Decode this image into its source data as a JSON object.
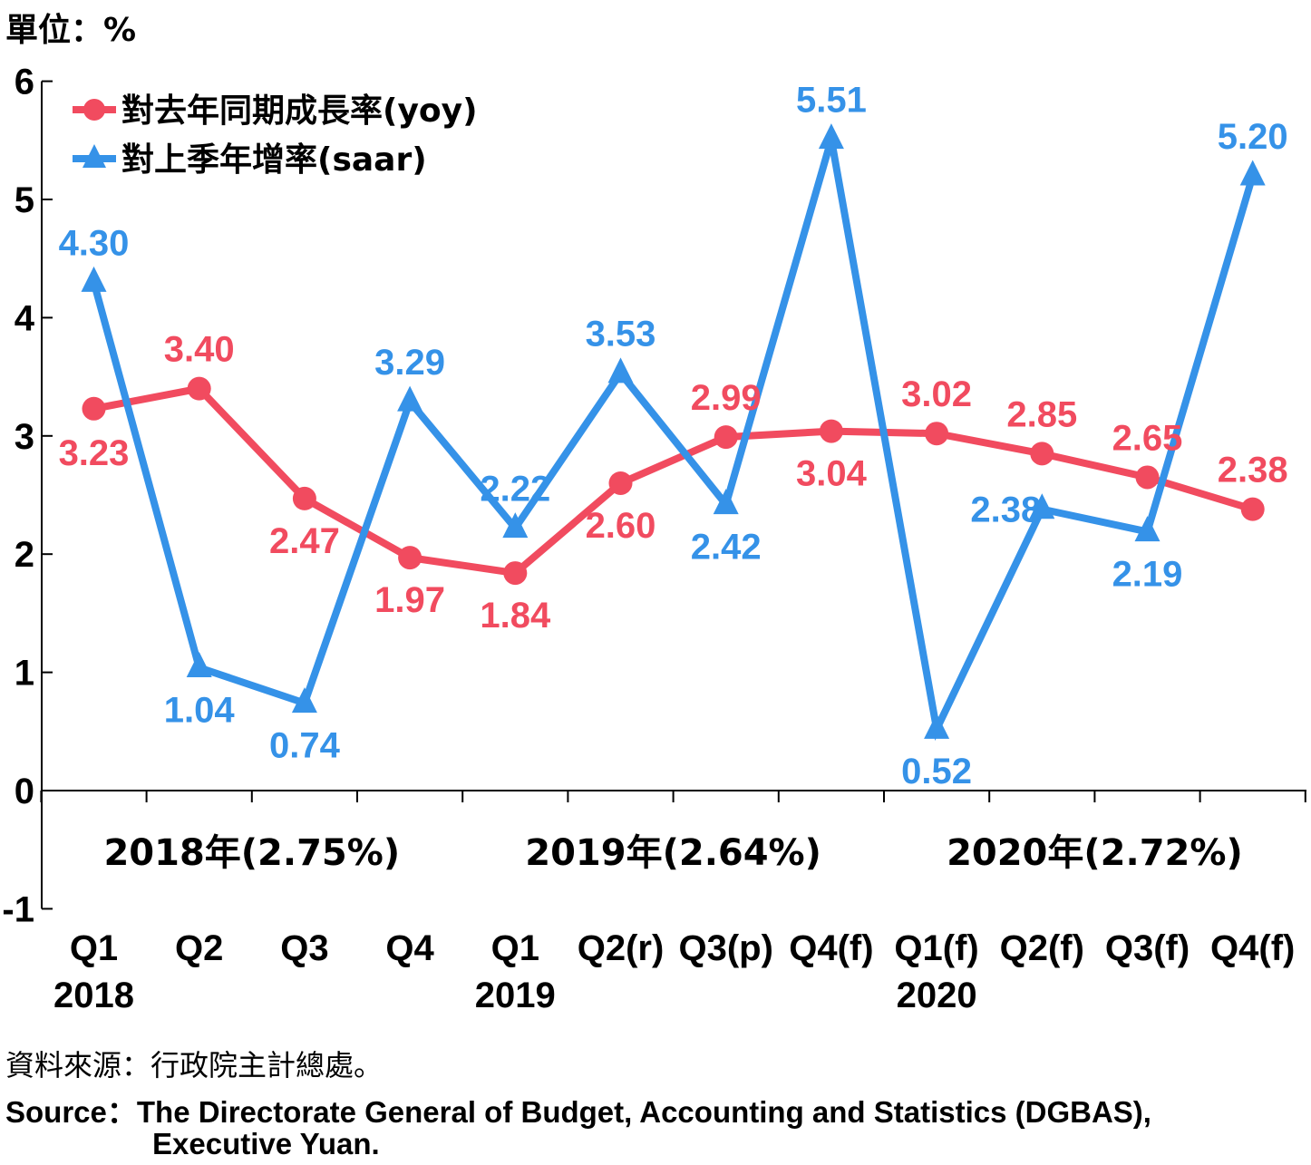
{
  "chart_data": {
    "type": "line",
    "unit_label": "單位：%",
    "categories": [
      "Q1",
      "Q2",
      "Q3",
      "Q4",
      "Q1",
      "Q2(r)",
      "Q3(p)",
      "Q4(f)",
      "Q1(f)",
      "Q2(f)",
      "Q3(f)",
      "Q4(f)"
    ],
    "year_labels": [
      {
        "index": 0,
        "label": "2018"
      },
      {
        "index": 4,
        "label": "2019"
      },
      {
        "index": 8,
        "label": "2020"
      }
    ],
    "year_group_labels": [
      {
        "start": 0,
        "end": 3,
        "label": "2018年(2.75%)"
      },
      {
        "start": 4,
        "end": 7,
        "label": "2019年(2.64%)"
      },
      {
        "start": 8,
        "end": 11,
        "label": "2020年(2.72%)"
      }
    ],
    "ylim": [
      -1,
      6
    ],
    "yticks": [
      -1,
      0,
      1,
      2,
      3,
      4,
      5,
      6
    ],
    "grid": false,
    "legend_position": "top-left",
    "series": [
      {
        "name": "對去年同期成長率(yoy)",
        "color": "#f14b5f",
        "marker": "circle",
        "values": [
          3.23,
          3.4,
          2.47,
          1.97,
          1.84,
          2.6,
          2.99,
          3.04,
          3.02,
          2.85,
          2.65,
          2.38
        ],
        "labels": [
          "3.23",
          "3.40",
          "2.47",
          "1.97",
          "1.84",
          "2.60",
          "2.99",
          "3.04",
          "3.02",
          "2.85",
          "2.65",
          "2.38"
        ]
      },
      {
        "name": "對上季年增率(saar)",
        "color": "#3592e8",
        "marker": "triangle",
        "values": [
          4.3,
          1.04,
          0.74,
          3.29,
          2.22,
          3.53,
          2.42,
          5.51,
          0.52,
          2.38,
          2.19,
          5.2
        ],
        "labels": [
          "4.30",
          "1.04",
          "0.74",
          "3.29",
          "2.22",
          "3.53",
          "2.42",
          "5.51",
          "0.52",
          "2.38",
          "2.19",
          "5.20"
        ]
      }
    ]
  },
  "source": {
    "zh": "資料來源：行政院主計總處。",
    "en_line1": "Source：The Directorate General of Budget, Accounting and Statistics (DGBAS),",
    "en_line2": "Executive Yuan."
  }
}
